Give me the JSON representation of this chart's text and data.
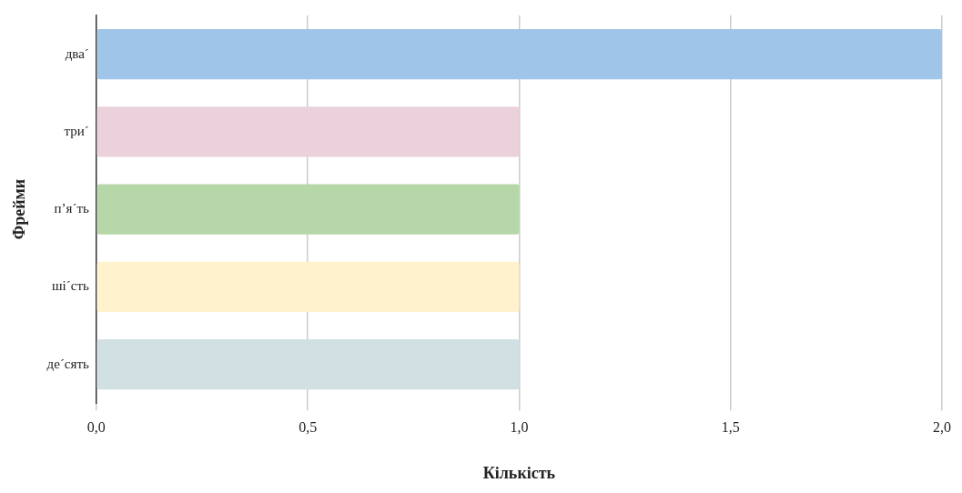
{
  "chart_data": {
    "type": "bar",
    "orientation": "horizontal",
    "xlabel": "Кількість",
    "ylabel": "Фрейми",
    "categories": [
      "два´",
      "три´",
      "п’я´ть",
      "ші´сть",
      "де´сять"
    ],
    "values": [
      2,
      1,
      1,
      1,
      1
    ],
    "colors": [
      "#9fc5e8",
      "#ead1dc",
      "#b6d7a8",
      "#fff2cc",
      "#d0e0e3"
    ],
    "xlim": [
      0,
      2
    ],
    "xticks": [
      {
        "value": 0,
        "label": "0,0"
      },
      {
        "value": 0.5,
        "label": "0,5"
      },
      {
        "value": 1,
        "label": "1,0"
      },
      {
        "value": 1.5,
        "label": "1,5"
      },
      {
        "value": 2,
        "label": "2,0"
      }
    ],
    "grid": "x",
    "legend": false
  }
}
